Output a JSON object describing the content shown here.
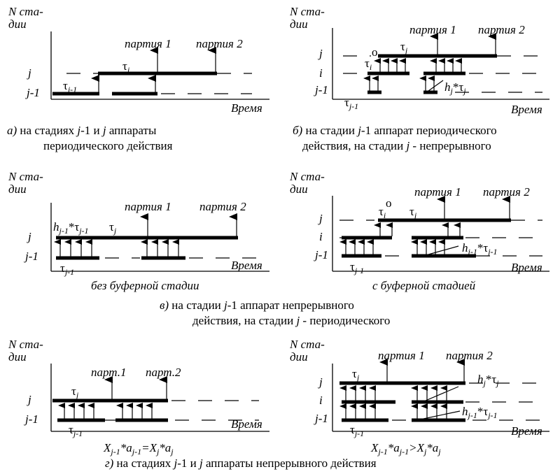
{
  "axis": {
    "y_label_1": "N ста-",
    "y_label_2": "дии",
    "x_label": "Время"
  },
  "levels": {
    "j": "j",
    "i": "i",
    "jm1": "j-1"
  },
  "batches": {
    "p1": "партия 1",
    "p2": "партия 2",
    "p1_short": "парт.1",
    "p2_short": "парт.2"
  },
  "symbols": {
    "tau": "τ",
    "j_sub": "j",
    "jm1_sub": "j-1",
    "i_sub": "i",
    "zero_sup": "o",
    "h": "h",
    "star": "*"
  },
  "captions": {
    "a_letter": "а)",
    "a_line1": " на стадиях ",
    "a_line1b": "-1 и ",
    "a_line1c": " аппараты",
    "a_line2": "периодического действия",
    "b_letter": "б)",
    "b_line1": " на стадии ",
    "b_line1b": "-1 аппарат периодического",
    "b_line2": "действия, на стадии ",
    "b_line2b": " - непрерывного",
    "c_sub1": "без буферной стадии",
    "c_sub2": "с буферной стадией",
    "c_letter": "в)",
    "c_line1": " на стадии ",
    "c_line1b": "-1 аппарат непрерывного",
    "c_line2": "действия, на стадии ",
    "c_line2b": " - периодического",
    "d_eq1_X": "X",
    "d_eq1_a": "a",
    "d_eq1_eq": "=",
    "d_eq2_gt": ">",
    "d_letter": "г)",
    "d_line": " на стадиях ",
    "d_lineb": "-1 и ",
    "d_linec": " аппараты непрерывного действия"
  }
}
